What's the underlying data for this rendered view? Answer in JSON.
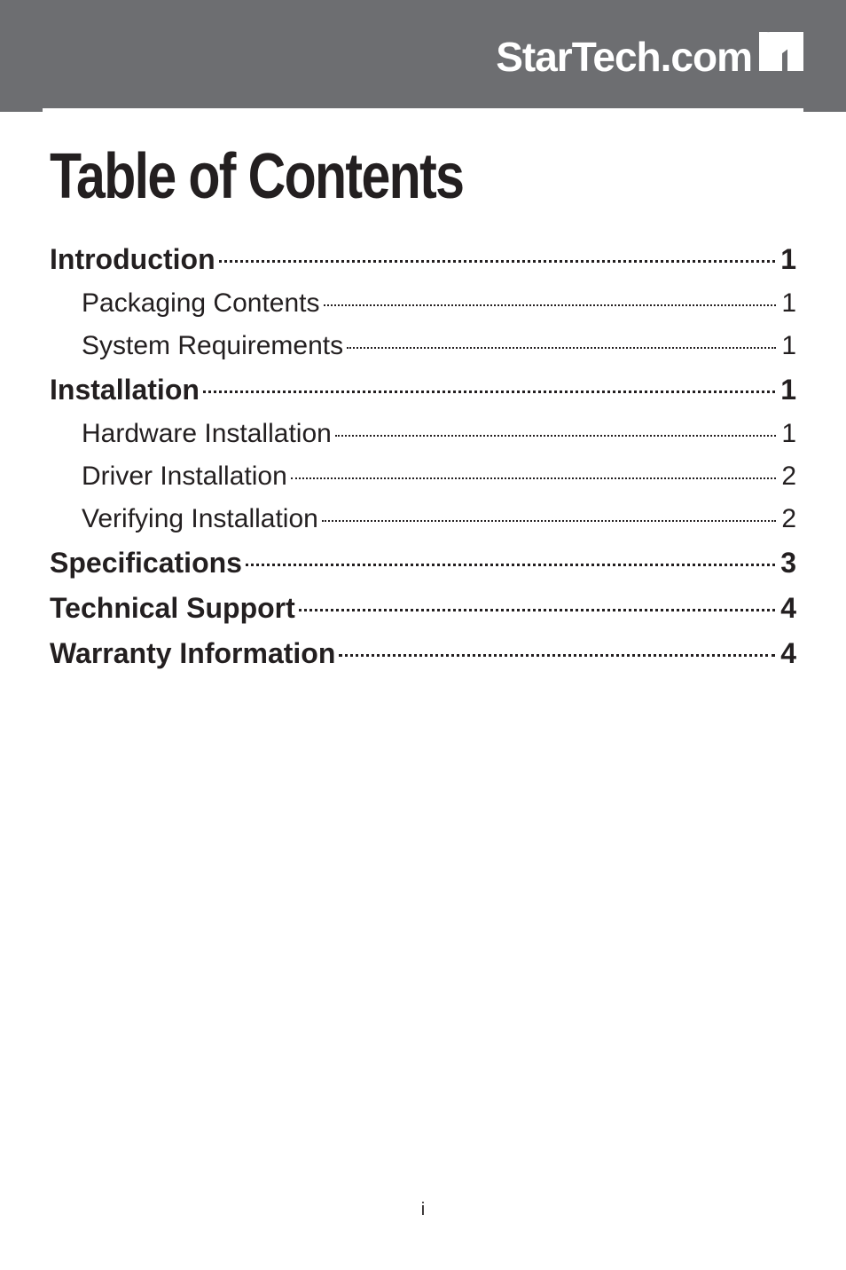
{
  "header": {
    "logo_text": "StarTech.com",
    "band_color": "#6d6e71",
    "logo_text_color": "#ffffff",
    "logo_mark_color": "#ffffff",
    "underline_color": "#ffffff"
  },
  "title": "Table of Contents",
  "toc": {
    "sections": [
      {
        "label": "Introduction",
        "page": "1",
        "level": 1,
        "children": [
          {
            "label": "Packaging Contents",
            "page": "1",
            "level": 2
          },
          {
            "label": "System Requirements",
            "page": "1",
            "level": 2
          }
        ]
      },
      {
        "label": "Installation",
        "page": "1",
        "level": 1,
        "children": [
          {
            "label": "Hardware Installation",
            "page": "1",
            "level": 2
          },
          {
            "label": "Driver Installation",
            "page": "2",
            "level": 2
          },
          {
            "label": "Verifying Installation",
            "page": "2",
            "level": 2
          }
        ]
      },
      {
        "label": "Specifications",
        "page": "3",
        "level": 1,
        "children": []
      },
      {
        "label": "Technical Support",
        "page": "4",
        "level": 1,
        "children": []
      },
      {
        "label": "Warranty Information",
        "page": "4",
        "level": 1,
        "children": []
      }
    ]
  },
  "page_number": "i",
  "colors": {
    "text": "#231f20",
    "background": "#ffffff"
  },
  "typography": {
    "title_fontsize": 72,
    "l1_fontsize": 32,
    "l2_fontsize": 30,
    "page_number_fontsize": 20
  }
}
